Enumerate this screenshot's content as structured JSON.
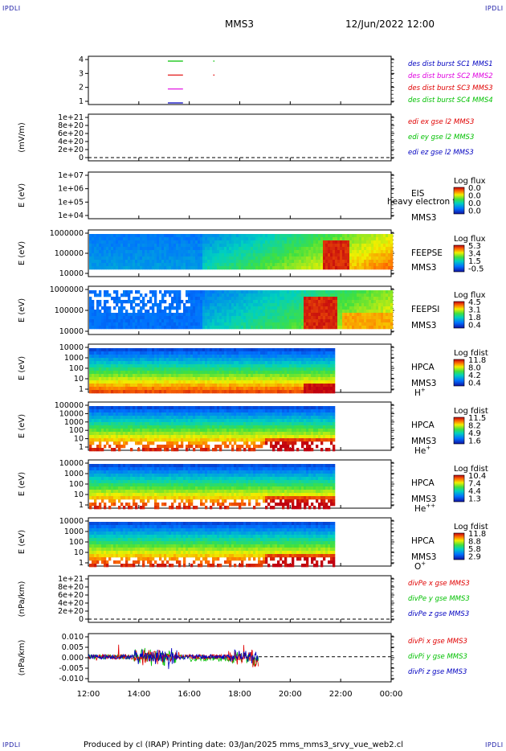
{
  "header": {
    "corner_tl": "IPDLI",
    "corner_tr": "IPDLI",
    "corner_bl": "IPDLI",
    "corner_br": "IPDLI",
    "spacecraft": "MMS3",
    "datetime": "12/Jun/2022 12:00"
  },
  "footer": {
    "text": "Produced by cl (IRAP)   Printing date: 03/Jan/2025   mms_mms3_srvy_vue_web2.cl"
  },
  "colors": {
    "black": "#000000",
    "red": "#e00000",
    "green": "#00c000",
    "blue": "#0000c0",
    "magenta": "#e000e0"
  },
  "chart_data": [
    {
      "type": "line",
      "id": "burst",
      "ylabel": "",
      "yticks": [
        "4",
        "3",
        "2",
        "1"
      ],
      "legend": [
        {
          "text": "des dist burst SC1 MMS1",
          "color": "blue"
        },
        {
          "text": "des dist burst SC2 MMS2",
          "color": "magenta"
        },
        {
          "text": "des dist burst SC3 MMS3",
          "color": "red"
        },
        {
          "text": "des dist burst SC4 MMS4",
          "color": "green"
        }
      ],
      "intervals": [
        {
          "sc": 4,
          "color": "green",
          "t0": 15.15,
          "t1": 15.75
        },
        {
          "sc": 3,
          "color": "red",
          "t0": 15.15,
          "t1": 15.75
        },
        {
          "sc": 2,
          "color": "magenta",
          "t0": 15.15,
          "t1": 15.75
        },
        {
          "sc": 1,
          "color": "blue",
          "t0": 15.15,
          "t1": 15.75
        },
        {
          "sc": 4,
          "color": "green",
          "t0": 16.95,
          "t1": 17.0
        },
        {
          "sc": 3,
          "color": "red",
          "t0": 16.95,
          "t1": 17.0
        }
      ]
    },
    {
      "type": "line",
      "id": "edi",
      "ylabel": "(mV/m)",
      "yticks": [
        "1e+21",
        "8e+20",
        "6e+20",
        "4e+20",
        "2e+20",
        "0"
      ],
      "legend": [
        {
          "text": "edi ex gse l2 MMS3",
          "color": "red"
        },
        {
          "text": "edi ey gse l2 MMS3",
          "color": "green"
        },
        {
          "text": "edi ez gse l2 MMS3",
          "color": "blue"
        }
      ]
    },
    {
      "type": "heatmap",
      "id": "eis",
      "ylabel": "E (eV)",
      "yticks": [
        "1e+07",
        "1e+06",
        "1e+05",
        "1e+04"
      ],
      "inst": [
        "EIS",
        "MMS3"
      ],
      "overlay": "heavy electron tof",
      "cb_title": "Log flux",
      "cb_values": [
        "0.0",
        "0.0",
        "0.0",
        "0.0"
      ]
    },
    {
      "type": "heatmap",
      "id": "feepse",
      "ylabel": "E (eV)",
      "yticks": [
        "1000000",
        "100000",
        "10000"
      ],
      "inst": [
        "FEEPSE",
        "MMS3"
      ],
      "cb_title": "Log flux",
      "cb_values": [
        "5.3",
        "3.4",
        "1.5",
        "-0.5"
      ]
    },
    {
      "type": "heatmap",
      "id": "feepsi",
      "ylabel": "E (eV)",
      "yticks": [
        "1000000",
        "100000",
        "10000"
      ],
      "inst": [
        "FEEPSI",
        "MMS3"
      ],
      "cb_title": "Log flux",
      "cb_values": [
        "4.5",
        "3.1",
        "1.8",
        "0.4"
      ]
    },
    {
      "type": "heatmap",
      "id": "hpca-h",
      "ylabel": "E (eV)",
      "yticks": [
        "10000",
        "1000",
        "100",
        "10",
        "1"
      ],
      "inst": [
        "HPCA",
        "MMS3"
      ],
      "species": "H",
      "species_sup": "+",
      "cb_title": "Log fdist",
      "cb_values": [
        "11.8",
        "8.0",
        "4.2",
        "0.4"
      ]
    },
    {
      "type": "heatmap",
      "id": "hpca-he",
      "ylabel": "E (eV)",
      "yticks": [
        "100000",
        "10000",
        "1000",
        "100",
        "10",
        "1"
      ],
      "inst": [
        "HPCA",
        "MMS3"
      ],
      "species": "He",
      "species_sup": "+",
      "cb_title": "Log fdist",
      "cb_values": [
        "11.5",
        "8.2",
        "4.9",
        "1.6"
      ]
    },
    {
      "type": "heatmap",
      "id": "hpca-hepp",
      "ylabel": "E (eV)",
      "yticks": [
        "10000",
        "1000",
        "100",
        "10",
        "1"
      ],
      "inst": [
        "HPCA",
        "MMS3"
      ],
      "species": "He",
      "species_sup": "++",
      "cb_title": "Log fdist",
      "cb_values": [
        "10.4",
        "7.4",
        "4.4",
        "1.3"
      ]
    },
    {
      "type": "heatmap",
      "id": "hpca-o",
      "ylabel": "E (eV)",
      "yticks": [
        "10000",
        "1000",
        "100",
        "10",
        "1"
      ],
      "inst": [
        "HPCA",
        "MMS3"
      ],
      "species": "O",
      "species_sup": "+",
      "cb_title": "Log fdist",
      "cb_values": [
        "11.8",
        "8.8",
        "5.8",
        "2.9"
      ]
    },
    {
      "type": "line",
      "id": "divpe",
      "ylabel": "(nPa/km)",
      "yticks": [
        "1e+21",
        "8e+20",
        "6e+20",
        "4e+20",
        "2e+20",
        "0"
      ],
      "legend": [
        {
          "text": "divPe x gse MMS3",
          "color": "red"
        },
        {
          "text": "divPe y gse MMS3",
          "color": "green"
        },
        {
          "text": "divPe z gse MMS3",
          "color": "blue"
        }
      ]
    },
    {
      "type": "line",
      "id": "divpi",
      "ylabel": "(nPa/km)",
      "yticks": [
        "0.010",
        "0.005",
        "0.000",
        "-0.005",
        "-0.010"
      ],
      "ylim": [
        -0.013,
        0.012
      ],
      "data_end_hour": 18.75,
      "legend": [
        {
          "text": "divPi x gse MMS3",
          "color": "red"
        },
        {
          "text": "divPi y gse MMS3",
          "color": "green"
        },
        {
          "text": "divPi z gse MMS3",
          "color": "blue"
        }
      ]
    }
  ],
  "xaxis": {
    "ticks": [
      "12:00",
      "14:00",
      "16:00",
      "18:00",
      "20:00",
      "22:00",
      "00:00"
    ]
  }
}
